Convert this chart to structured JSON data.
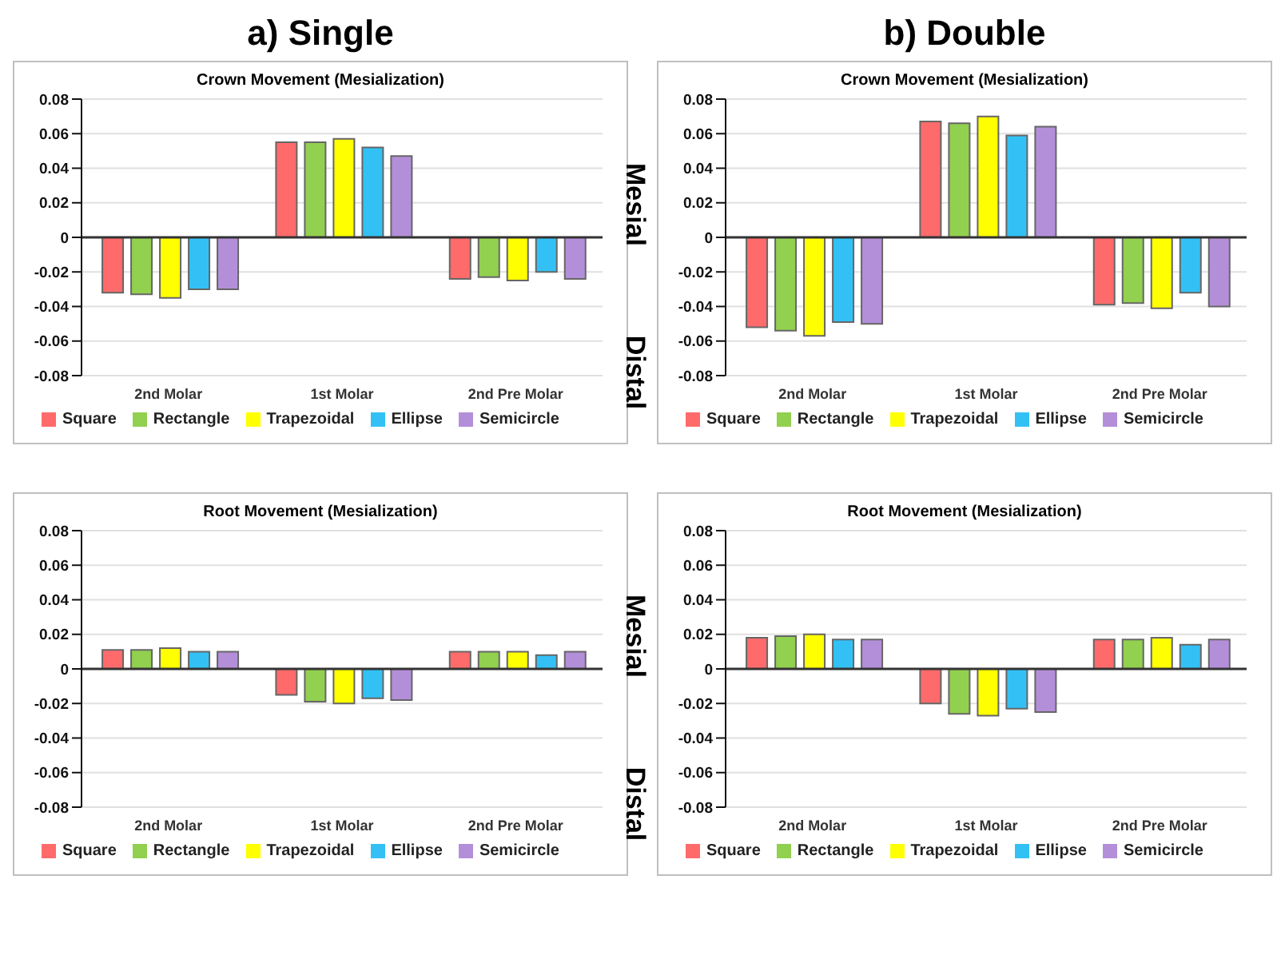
{
  "chart_data": [
    {
      "type": "bar",
      "title": "a) Single",
      "subtitle": "Crown Movement (Mesialization)",
      "categories": [
        "2nd Molar",
        "1st Molar",
        "2nd Pre Molar"
      ],
      "ylim": [
        -0.08,
        0.08
      ],
      "yticks": [
        -0.08,
        -0.06,
        -0.04,
        -0.02,
        0,
        0.02,
        0.04,
        0.06,
        0.08
      ],
      "grid": "y",
      "legend": "bottom",
      "series": [
        {
          "name": "Square",
          "color": "#ff6b6b",
          "values": [
            -0.032,
            0.055,
            -0.024
          ]
        },
        {
          "name": "Rectangle",
          "color": "#92d050",
          "values": [
            -0.033,
            0.055,
            -0.023
          ]
        },
        {
          "name": "Trapezoidal",
          "color": "#ffff00",
          "values": [
            -0.035,
            0.057,
            -0.025
          ]
        },
        {
          "name": "Ellipse",
          "color": "#33c1f5",
          "values": [
            -0.03,
            0.052,
            -0.02
          ]
        },
        {
          "name": "Semicircle",
          "color": "#b48fd9",
          "values": [
            -0.03,
            0.047,
            -0.024
          ]
        }
      ]
    },
    {
      "type": "bar",
      "title": "b) Double",
      "subtitle": "Crown Movement (Mesialization)",
      "annotations": [
        "Mesial",
        "Distal"
      ],
      "categories": [
        "2nd Molar",
        "1st Molar",
        "2nd Pre Molar"
      ],
      "ylim": [
        -0.08,
        0.08
      ],
      "yticks": [
        -0.08,
        -0.06,
        -0.04,
        -0.02,
        0,
        0.02,
        0.04,
        0.06,
        0.08
      ],
      "grid": "y",
      "legend": "bottom",
      "series": [
        {
          "name": "Square",
          "color": "#ff6b6b",
          "values": [
            -0.052,
            0.067,
            -0.039
          ]
        },
        {
          "name": "Rectangle",
          "color": "#92d050",
          "values": [
            -0.054,
            0.066,
            -0.038
          ]
        },
        {
          "name": "Trapezoidal",
          "color": "#ffff00",
          "values": [
            -0.057,
            0.07,
            -0.041
          ]
        },
        {
          "name": "Ellipse",
          "color": "#33c1f5",
          "values": [
            -0.049,
            0.059,
            -0.032
          ]
        },
        {
          "name": "Semicircle",
          "color": "#b48fd9",
          "values": [
            -0.05,
            0.064,
            -0.04
          ]
        }
      ]
    },
    {
      "type": "bar",
      "subtitle": "Root Movement (Mesialization)",
      "categories": [
        "2nd Molar",
        "1st Molar",
        "2nd Pre Molar"
      ],
      "ylim": [
        -0.08,
        0.08
      ],
      "yticks": [
        -0.08,
        -0.06,
        -0.04,
        -0.02,
        0,
        0.02,
        0.04,
        0.06,
        0.08
      ],
      "grid": "y",
      "legend": "bottom",
      "series": [
        {
          "name": "Square",
          "color": "#ff6b6b",
          "values": [
            0.011,
            -0.015,
            0.01
          ]
        },
        {
          "name": "Rectangle",
          "color": "#92d050",
          "values": [
            0.011,
            -0.019,
            0.01
          ]
        },
        {
          "name": "Trapezoidal",
          "color": "#ffff00",
          "values": [
            0.012,
            -0.02,
            0.01
          ]
        },
        {
          "name": "Ellipse",
          "color": "#33c1f5",
          "values": [
            0.01,
            -0.017,
            0.008
          ]
        },
        {
          "name": "Semicircle",
          "color": "#b48fd9",
          "values": [
            0.01,
            -0.018,
            0.01
          ]
        }
      ]
    },
    {
      "type": "bar",
      "subtitle": "Root Movement (Mesialization)",
      "annotations": [
        "Mesial",
        "Distal"
      ],
      "categories": [
        "2nd Molar",
        "1st Molar",
        "2nd Pre Molar"
      ],
      "ylim": [
        -0.08,
        0.08
      ],
      "yticks": [
        -0.08,
        -0.06,
        -0.04,
        -0.02,
        0,
        0.02,
        0.04,
        0.06,
        0.08
      ],
      "grid": "y",
      "legend": "bottom",
      "series": [
        {
          "name": "Square",
          "color": "#ff6b6b",
          "values": [
            0.018,
            -0.02,
            0.017
          ]
        },
        {
          "name": "Rectangle",
          "color": "#92d050",
          "values": [
            0.019,
            -0.026,
            0.017
          ]
        },
        {
          "name": "Trapezoidal",
          "color": "#ffff00",
          "values": [
            0.02,
            -0.027,
            0.018
          ]
        },
        {
          "name": "Ellipse",
          "color": "#33c1f5",
          "values": [
            0.017,
            -0.023,
            0.014
          ]
        },
        {
          "name": "Semicircle",
          "color": "#b48fd9",
          "values": [
            0.017,
            -0.025,
            0.017
          ]
        }
      ]
    }
  ]
}
